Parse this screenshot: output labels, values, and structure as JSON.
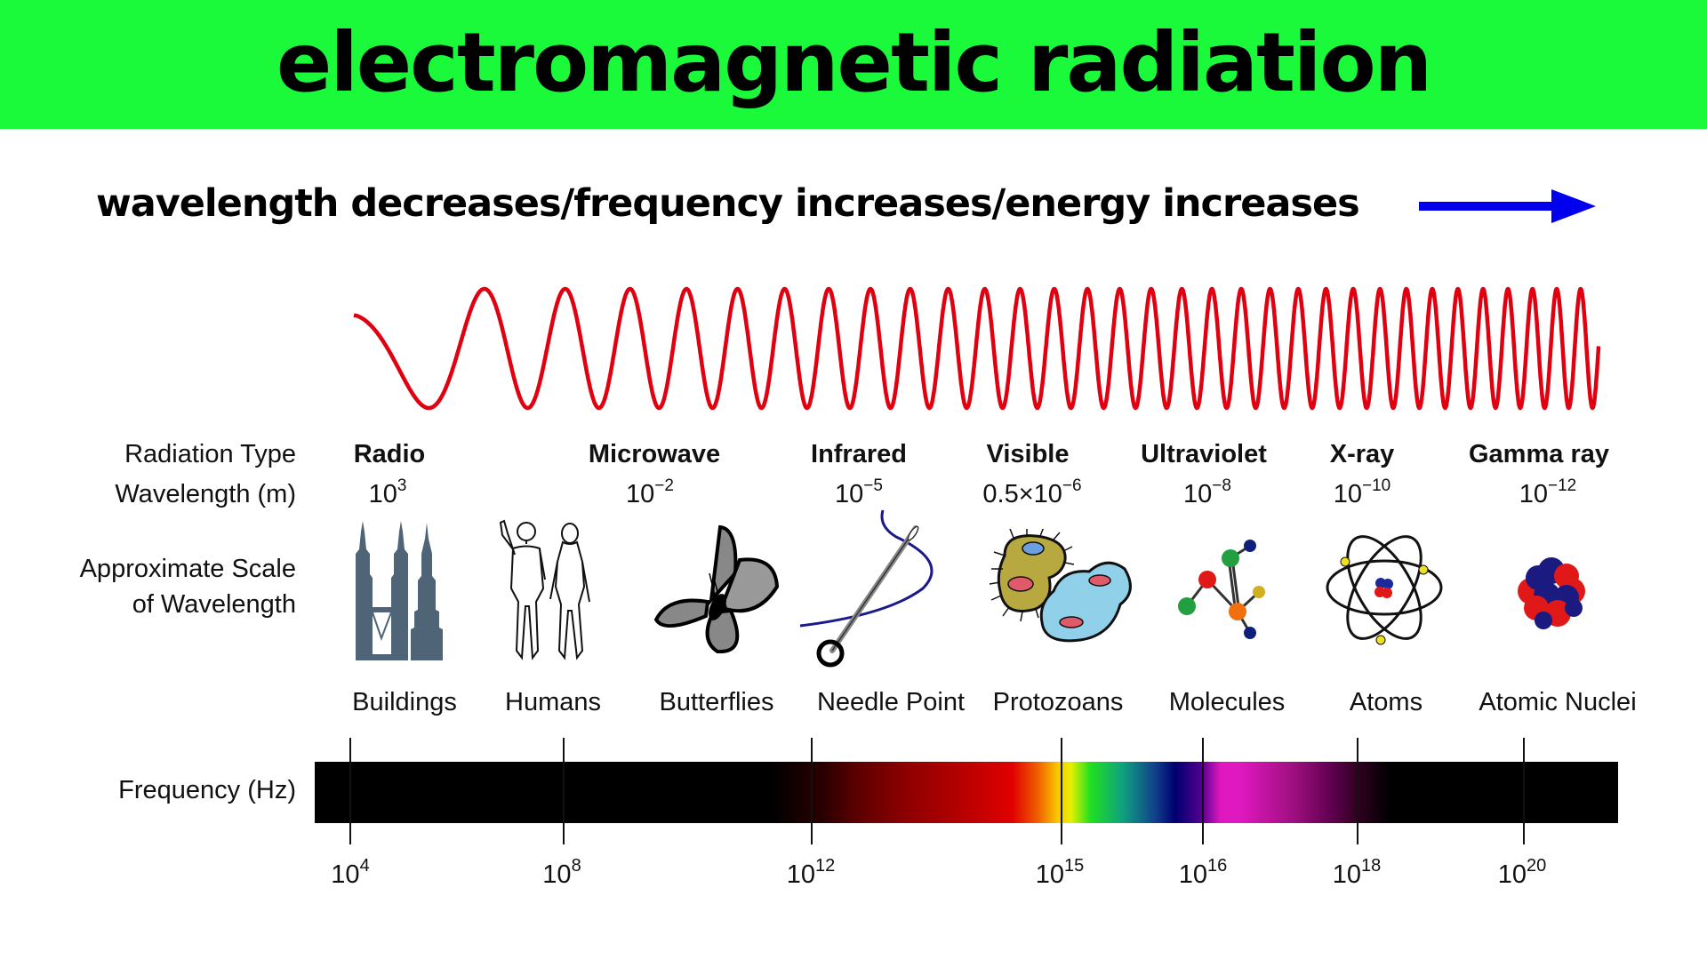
{
  "header": {
    "title": "electromagnetic radiation",
    "banner_color": "#1afa3a"
  },
  "direction": {
    "text": "wavelength decreases/frequency increases/energy increases",
    "arrow_icon": "right-arrow-icon",
    "arrow_color": "#0000ee"
  },
  "wave": {
    "color": "#e00010",
    "description": "sine wave with increasing frequency from left to right"
  },
  "row_labels": {
    "radiation_type": "Radiation Type",
    "wavelength": "Wavelength (m)",
    "scale_line1": "Approximate Scale",
    "scale_line2": "of Wavelength",
    "frequency": "Frequency (Hz)"
  },
  "radiation_types": [
    {
      "name": "Radio",
      "wl_base": "10",
      "wl_exp": "3"
    },
    {
      "name": "Microwave",
      "wl_base": "10",
      "wl_exp": "−2"
    },
    {
      "name": "Infrared",
      "wl_base": "10",
      "wl_exp": "−5"
    },
    {
      "name": "Visible",
      "wl_base": "0.5×10",
      "wl_exp": "−6"
    },
    {
      "name": "Ultraviolet",
      "wl_base": "10",
      "wl_exp": "−8"
    },
    {
      "name": "X-ray",
      "wl_base": "10",
      "wl_exp": "−10"
    },
    {
      "name": "Gamma ray",
      "wl_base": "10",
      "wl_exp": "−12"
    }
  ],
  "scale_objects": [
    {
      "label": "Buildings",
      "icon": "buildings-icon"
    },
    {
      "label": "Humans",
      "icon": "humans-icon"
    },
    {
      "label": "Butterflies",
      "icon": "butterfly-icon"
    },
    {
      "label": "Needle Point",
      "icon": "needle-icon"
    },
    {
      "label": "Protozoans",
      "icon": "protozoa-icon"
    },
    {
      "label": "Molecules",
      "icon": "molecule-icon"
    },
    {
      "label": "Atoms",
      "icon": "atom-icon"
    },
    {
      "label": "Atomic Nuclei",
      "icon": "nucleus-icon"
    }
  ],
  "frequency_ticks": [
    {
      "base": "10",
      "exp": "4"
    },
    {
      "base": "10",
      "exp": "8"
    },
    {
      "base": "10",
      "exp": "12"
    },
    {
      "base": "10",
      "exp": "15"
    },
    {
      "base": "10",
      "exp": "16"
    },
    {
      "base": "10",
      "exp": "18"
    },
    {
      "base": "10",
      "exp": "20"
    }
  ]
}
